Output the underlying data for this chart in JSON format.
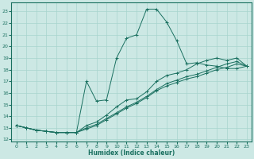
{
  "xlabel": "Humidex (Indice chaleur)",
  "xlim": [
    -0.5,
    23.5
  ],
  "ylim": [
    11.8,
    23.8
  ],
  "yticks": [
    12,
    13,
    14,
    15,
    16,
    17,
    18,
    19,
    20,
    21,
    22,
    23
  ],
  "xticks": [
    0,
    1,
    2,
    3,
    4,
    5,
    6,
    7,
    8,
    9,
    10,
    11,
    12,
    13,
    14,
    15,
    16,
    17,
    18,
    19,
    20,
    21,
    22,
    23
  ],
  "bg_color": "#cce8e4",
  "line_color": "#1a7060",
  "line1_x": [
    0,
    1,
    2,
    3,
    4,
    5,
    6,
    7,
    8,
    9,
    10,
    11,
    12,
    13,
    14,
    15,
    16,
    17,
    18,
    19,
    20,
    21,
    22,
    23
  ],
  "line1_y": [
    13.2,
    13.0,
    12.8,
    12.7,
    12.6,
    12.6,
    12.6,
    17.0,
    15.3,
    15.4,
    19.0,
    20.7,
    21.0,
    23.2,
    23.2,
    22.1,
    20.5,
    18.5,
    18.6,
    18.4,
    18.3,
    18.1,
    18.1,
    18.3
  ],
  "line2_x": [
    0,
    1,
    2,
    3,
    4,
    5,
    6,
    7,
    8,
    9,
    10,
    11,
    12,
    13,
    14,
    15,
    16,
    17,
    18,
    19,
    20,
    21,
    22,
    23
  ],
  "line2_y": [
    13.2,
    13.0,
    12.8,
    12.7,
    12.6,
    12.6,
    12.6,
    13.2,
    13.5,
    14.1,
    14.8,
    15.4,
    15.5,
    16.1,
    17.0,
    17.5,
    17.7,
    18.0,
    18.5,
    18.8,
    19.0,
    18.8,
    19.0,
    18.3
  ],
  "line3_x": [
    0,
    1,
    2,
    3,
    4,
    5,
    6,
    7,
    8,
    9,
    10,
    11,
    12,
    13,
    14,
    15,
    16,
    17,
    18,
    19,
    20,
    21,
    22,
    23
  ],
  "line3_y": [
    13.2,
    13.0,
    12.8,
    12.7,
    12.6,
    12.6,
    12.6,
    13.0,
    13.3,
    13.8,
    14.3,
    14.8,
    15.2,
    15.7,
    16.3,
    16.8,
    17.1,
    17.4,
    17.6,
    17.9,
    18.2,
    18.5,
    18.7,
    18.3
  ],
  "line4_x": [
    0,
    1,
    2,
    3,
    4,
    5,
    6,
    7,
    8,
    9,
    10,
    11,
    12,
    13,
    14,
    15,
    16,
    17,
    18,
    19,
    20,
    21,
    22,
    23
  ],
  "line4_y": [
    13.2,
    13.0,
    12.8,
    12.7,
    12.6,
    12.6,
    12.6,
    12.9,
    13.2,
    13.7,
    14.2,
    14.7,
    15.1,
    15.6,
    16.2,
    16.6,
    16.9,
    17.2,
    17.4,
    17.7,
    18.0,
    18.2,
    18.5,
    18.3
  ]
}
